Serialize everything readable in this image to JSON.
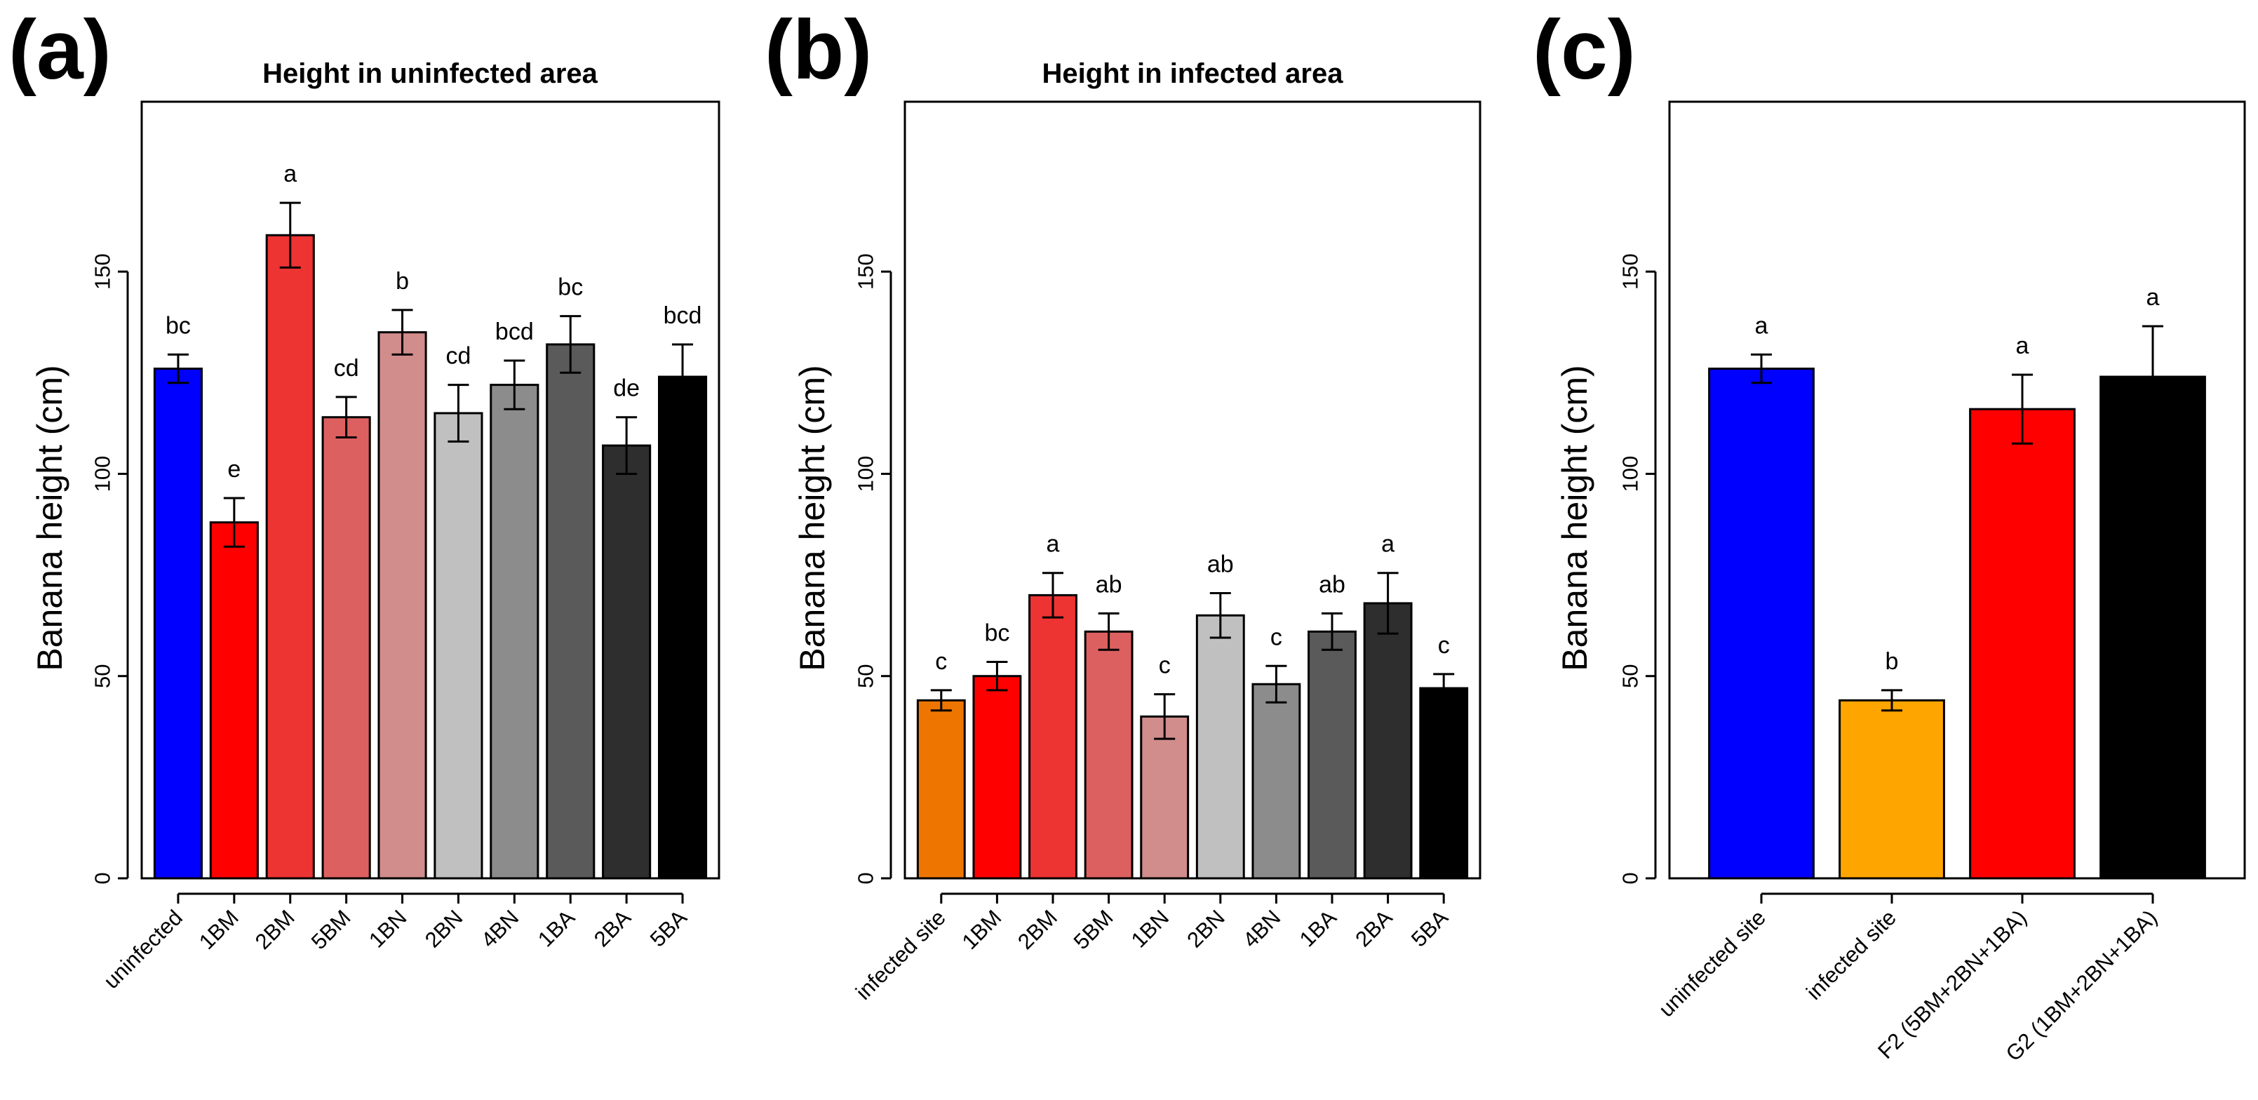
{
  "chart_data": [
    {
      "type": "bar",
      "panel": "(a)",
      "title": "Height in uninfected area",
      "xlabel": "",
      "ylabel": "Banana height (cm)",
      "ylim": [
        0,
        192
      ],
      "yticks": [
        "0",
        "50",
        "100",
        "150"
      ],
      "categories": [
        "uninfected",
        "1BM",
        "2BM",
        "5BM",
        "1BN",
        "2BN",
        "4BN",
        "1BA",
        "2BA",
        "5BA"
      ],
      "values": [
        126,
        88,
        159,
        114,
        135,
        115,
        122,
        132,
        107,
        124
      ],
      "errors": [
        3.5,
        6,
        8,
        5,
        5.5,
        7,
        6,
        7,
        7,
        8
      ],
      "letters": [
        "bc",
        "e",
        "a",
        "cd",
        "b",
        "cd",
        "bcd",
        "bc",
        "de",
        "bcd"
      ],
      "colors": [
        "#0000ff",
        "#ff0000",
        "#ee3333",
        "#dd6060",
        "#d18c8c",
        "#c0c0c0",
        "#8c8c8c",
        "#5a5a5a",
        "#2e2e2e",
        "#000000"
      ]
    },
    {
      "type": "bar",
      "panel": "(b)",
      "title": "Height in infected area",
      "xlabel": "",
      "ylabel": "Banana height (cm)",
      "ylim": [
        0,
        192
      ],
      "yticks": [
        "0",
        "50",
        "100",
        "150"
      ],
      "categories": [
        "infected site",
        "1BM",
        "2BM",
        "5BM",
        "1BN",
        "2BN",
        "4BN",
        "1BA",
        "2BA",
        "5BA"
      ],
      "values": [
        44,
        50,
        70,
        61,
        40,
        65,
        48,
        61,
        68,
        47
      ],
      "errors": [
        2.5,
        3.5,
        5.5,
        4.5,
        5.5,
        5.5,
        4.5,
        4.5,
        7.5,
        3.5
      ],
      "letters": [
        "c",
        "bc",
        "a",
        "ab",
        "c",
        "ab",
        "c",
        "ab",
        "a",
        "c"
      ],
      "colors": [
        "#ee7600",
        "#ff0000",
        "#ee3333",
        "#dd6060",
        "#d18c8c",
        "#c0c0c0",
        "#8c8c8c",
        "#5a5a5a",
        "#2e2e2e",
        "#000000"
      ]
    },
    {
      "type": "bar",
      "panel": "(c)",
      "title": "",
      "xlabel": "",
      "ylabel": "Banana height (cm)",
      "ylim": [
        0,
        192
      ],
      "yticks": [
        "0",
        "50",
        "100",
        "150"
      ],
      "categories": [
        "uninfected site",
        "infected site",
        "F2 (5BM+2BN+1BA)",
        "G2 (1BM+2BN+1BA)"
      ],
      "values": [
        126,
        44,
        116,
        124
      ],
      "errors": [
        3.5,
        2.5,
        8.5,
        12.5
      ],
      "letters": [
        "a",
        "b",
        "a",
        "a"
      ],
      "colors": [
        "#0000ff",
        "#ffa500",
        "#ff0000",
        "#000000"
      ]
    }
  ]
}
